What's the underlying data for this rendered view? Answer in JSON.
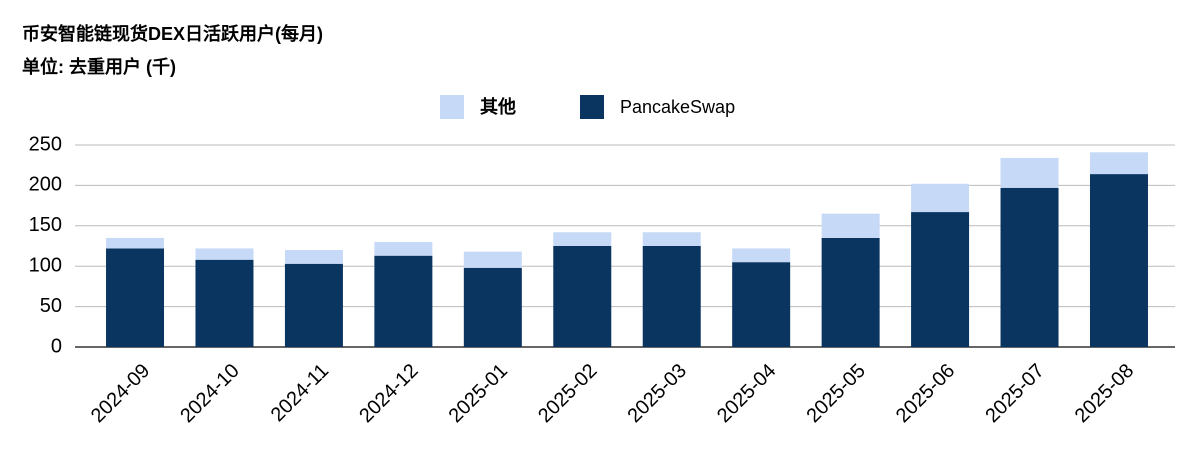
{
  "chart_data": {
    "type": "stacked-bar",
    "title": "币安智能链现货DEX日活跃用户(每月)",
    "subtitle": "单位: 去重用户 (千)",
    "categories": [
      "2024-09",
      "2024-10",
      "2024-11",
      "2024-12",
      "2025-01",
      "2025-02",
      "2025-03",
      "2025-04",
      "2025-05",
      "2025-06",
      "2025-07",
      "2025-08"
    ],
    "series": [
      {
        "name": "其他",
        "color": "#c6d9f7",
        "values": [
          13,
          14,
          17,
          17,
          20,
          17,
          17,
          17,
          30,
          35,
          37,
          27
        ]
      },
      {
        "name": "PancakeSwap",
        "color": "#0b3561",
        "values": [
          122,
          108,
          103,
          113,
          98,
          125,
          125,
          105,
          135,
          167,
          197,
          214
        ]
      }
    ],
    "stack_order": [
      "PancakeSwap",
      "其他"
    ],
    "ylim": [
      0,
      250
    ],
    "yticks": [
      0,
      50,
      100,
      150,
      200,
      250
    ],
    "grid": true,
    "legend": "top"
  }
}
